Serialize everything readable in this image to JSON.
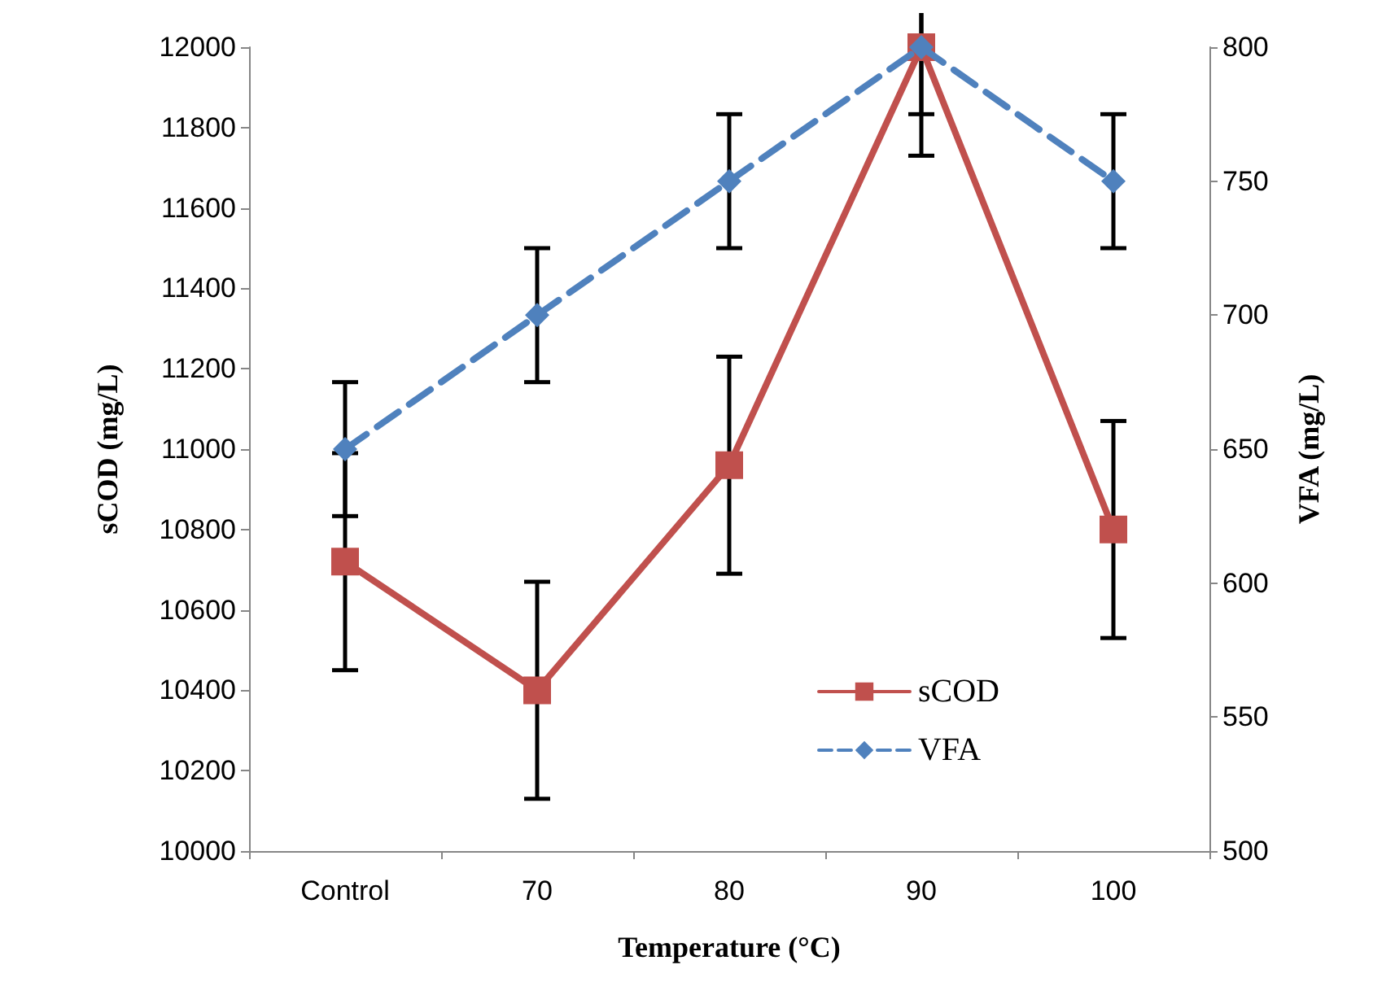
{
  "chart_data": {
    "type": "line",
    "xlabel": "Temperature (°C)",
    "ylabel": "sCOD (mg/L)",
    "y2label": "VFA (mg/L)",
    "categories": [
      "Control",
      "70",
      "80",
      "90",
      "100"
    ],
    "series": [
      {
        "name": "sCOD",
        "color": "#c0504d",
        "values": [
          10720,
          10400,
          10960,
          12000,
          10800
        ],
        "errors": [
          270,
          270,
          270,
          270,
          270
        ],
        "marker": "square",
        "line_style": "solid"
      },
      {
        "name": "VFA",
        "color": "#4f81bd",
        "values": [
          650,
          700,
          750,
          800,
          750
        ],
        "errors": [
          25,
          25,
          25,
          25,
          25
        ],
        "axis": "y2",
        "marker": "diamond",
        "line_style": "dashed"
      }
    ],
    "ylim": [
      10000,
      12000
    ],
    "yticks": [
      10000,
      10200,
      10400,
      10600,
      10800,
      11000,
      11200,
      11400,
      11600,
      11800,
      12000
    ],
    "y2lim": [
      500,
      800
    ],
    "y2ticks": [
      500,
      550,
      600,
      650,
      700,
      750,
      800
    ],
    "grid": false,
    "legend": "bottom right"
  }
}
